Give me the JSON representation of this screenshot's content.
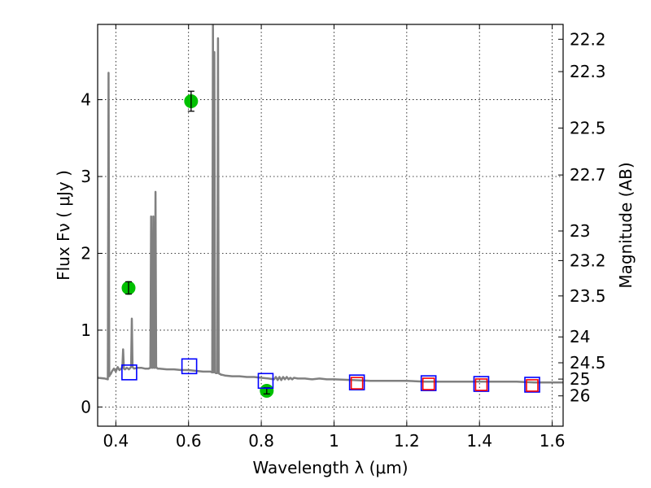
{
  "chart_data": {
    "type": "scatter",
    "xlabel": "Wavelength  λ (μm)",
    "ylabel": "Flux  Fν  ( μJy )",
    "y2label": "Magnitude (AB)",
    "xlim": [
      0.35,
      1.63
    ],
    "ylim": [
      -0.25,
      4.98
    ],
    "grid": true,
    "x_ticks": [
      0.4,
      0.6,
      0.8,
      1.0,
      1.2,
      1.4,
      1.6
    ],
    "x_tick_labels": [
      "0.4",
      "0.6",
      "0.8",
      "1",
      "1.2",
      "1.4",
      "1.6"
    ],
    "y_ticks": [
      0,
      1,
      2,
      3,
      4
    ],
    "y_tick_labels": [
      "0",
      "1",
      "2",
      "3",
      "4"
    ],
    "y2_tick_labels": [
      "22.2",
      "22.3",
      "22.5",
      "22.7",
      "23",
      "23.2",
      "23.5",
      "24",
      "24.5",
      "25",
      "26"
    ],
    "series": [
      {
        "type": "line",
        "color": "#808080",
        "x": [
          0.35,
          0.37,
          0.378,
          0.38,
          0.382,
          0.384,
          0.386,
          0.39,
          0.395,
          0.4,
          0.405,
          0.41,
          0.415,
          0.418,
          0.42,
          0.422,
          0.425,
          0.43,
          0.434,
          0.436,
          0.438,
          0.442,
          0.444,
          0.446,
          0.45,
          0.46,
          0.47,
          0.48,
          0.49,
          0.495,
          0.497,
          0.499,
          0.501,
          0.503,
          0.505,
          0.507,
          0.509,
          0.511,
          0.513,
          0.515,
          0.52,
          0.54,
          0.56,
          0.58,
          0.6,
          0.62,
          0.64,
          0.66,
          0.665,
          0.667,
          0.669,
          0.671,
          0.673,
          0.675,
          0.679,
          0.681,
          0.683,
          0.685,
          0.687,
          0.689,
          0.691,
          0.7,
          0.72,
          0.74,
          0.76,
          0.78,
          0.8,
          0.82,
          0.835,
          0.84,
          0.845,
          0.85,
          0.855,
          0.86,
          0.865,
          0.87,
          0.875,
          0.88,
          0.885,
          0.89,
          0.9,
          0.92,
          0.94,
          0.96,
          0.98,
          1.0,
          1.05,
          1.1,
          1.15,
          1.2,
          1.25,
          1.3,
          1.35,
          1.4,
          1.45,
          1.5,
          1.55,
          1.6,
          1.63
        ],
        "y": [
          0.38,
          0.37,
          0.36,
          4.35,
          0.4,
          0.42,
          0.43,
          0.47,
          0.5,
          0.46,
          0.52,
          0.48,
          0.5,
          0.52,
          0.75,
          0.5,
          0.49,
          0.51,
          0.5,
          0.49,
          0.5,
          0.52,
          1.15,
          0.52,
          0.5,
          0.51,
          0.51,
          0.5,
          0.5,
          0.51,
          2.48,
          0.51,
          0.51,
          2.48,
          0.51,
          0.51,
          2.8,
          0.51,
          0.51,
          0.5,
          0.5,
          0.49,
          0.49,
          0.48,
          0.48,
          0.47,
          0.46,
          0.46,
          0.45,
          4.98,
          0.45,
          4.62,
          0.45,
          0.44,
          0.44,
          4.8,
          0.44,
          0.43,
          0.43,
          0.42,
          0.42,
          0.41,
          0.4,
          0.4,
          0.39,
          0.39,
          0.38,
          0.37,
          0.36,
          0.39,
          0.35,
          0.39,
          0.35,
          0.39,
          0.36,
          0.39,
          0.36,
          0.38,
          0.36,
          0.38,
          0.37,
          0.37,
          0.36,
          0.37,
          0.36,
          0.36,
          0.35,
          0.34,
          0.34,
          0.34,
          0.33,
          0.33,
          0.33,
          0.33,
          0.33,
          0.33,
          0.32,
          0.32,
          0.32
        ]
      },
      {
        "type": "errorbar",
        "marker": "circle",
        "color": "#00c000",
        "x": [
          0.435,
          0.607,
          0.815
        ],
        "y": [
          1.55,
          3.98,
          0.21
        ],
        "yerr": [
          0.08,
          0.13,
          0.04
        ]
      },
      {
        "type": "scatter",
        "marker": "square-open",
        "color": "#0000ff",
        "x": [
          0.437,
          0.602,
          0.812,
          1.063,
          1.26,
          1.405,
          1.545
        ],
        "y": [
          0.45,
          0.53,
          0.34,
          0.32,
          0.31,
          0.3,
          0.29
        ]
      },
      {
        "type": "scatter",
        "marker": "square-open",
        "color": "#ff0000",
        "x": [
          1.063,
          1.26,
          1.405,
          1.545
        ],
        "y": [
          0.31,
          0.3,
          0.29,
          0.28
        ]
      }
    ]
  }
}
